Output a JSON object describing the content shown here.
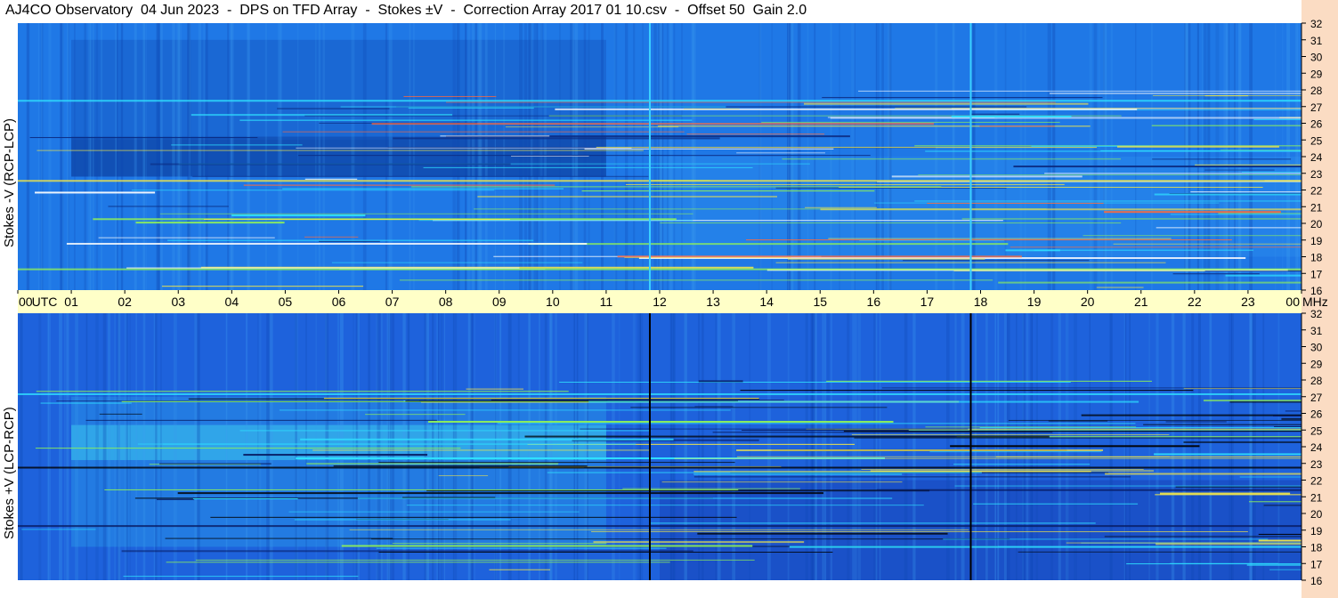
{
  "title": "AJ4CO Observatory  04 Jun 2023  -  DPS on TFD Array  -  Stokes ±V  -  Correction Array 2017 01 10.csv  -  Offset 50  Gain 2.0",
  "colors": {
    "axis_band": "#ffffc8",
    "right_strip": "#fbdcc3",
    "spectrogram_base": "#1e6fe0",
    "bright_line": "#3ad0ff"
  },
  "chart_data": [
    {
      "type": "heatmap",
      "title": "Stokes -V (RCP-LCP)",
      "ylabel": "Stokes -V (RCP-LCP)",
      "xlabel": "UTC",
      "xunit": "UTC",
      "yunit": "MHz",
      "xlim": [
        0,
        24
      ],
      "ylim": [
        16,
        32
      ],
      "x_ticks": [
        "00",
        "01",
        "02",
        "03",
        "04",
        "05",
        "06",
        "07",
        "08",
        "09",
        "10",
        "11",
        "12",
        "13",
        "14",
        "15",
        "16",
        "17",
        "18",
        "19",
        "20",
        "21",
        "22",
        "23",
        "00"
      ],
      "y_ticks": [
        "32",
        "31",
        "30",
        "29",
        "28",
        "27",
        "26",
        "25",
        "24",
        "23",
        "22",
        "21",
        "20",
        "19",
        "18",
        "17",
        "16"
      ],
      "bright_vertical_lines_utc": [
        11.8,
        17.8
      ],
      "dark_region_utc": [
        1,
        11
      ]
    },
    {
      "type": "heatmap",
      "title": "Stokes +V (LCP-RCP)",
      "ylabel": "Stokes +V (LCP-RCP)",
      "xlabel": "UTC",
      "xunit": "UTC",
      "yunit": "MHz",
      "xlim": [
        0,
        24
      ],
      "ylim": [
        16,
        32
      ],
      "x_ticks": [
        "00",
        "01",
        "02",
        "03",
        "04",
        "05",
        "06",
        "07",
        "08",
        "09",
        "10",
        "11",
        "12",
        "13",
        "14",
        "15",
        "16",
        "17",
        "18",
        "19",
        "20",
        "21",
        "22",
        "23",
        "00"
      ],
      "y_ticks": [
        "32",
        "31",
        "30",
        "29",
        "28",
        "27",
        "26",
        "25",
        "24",
        "23",
        "22",
        "21",
        "20",
        "19",
        "18",
        "17",
        "16"
      ],
      "dark_vertical_lines_utc": [
        11.8,
        17.8
      ],
      "bright_region_utc": [
        1,
        11
      ]
    }
  ]
}
